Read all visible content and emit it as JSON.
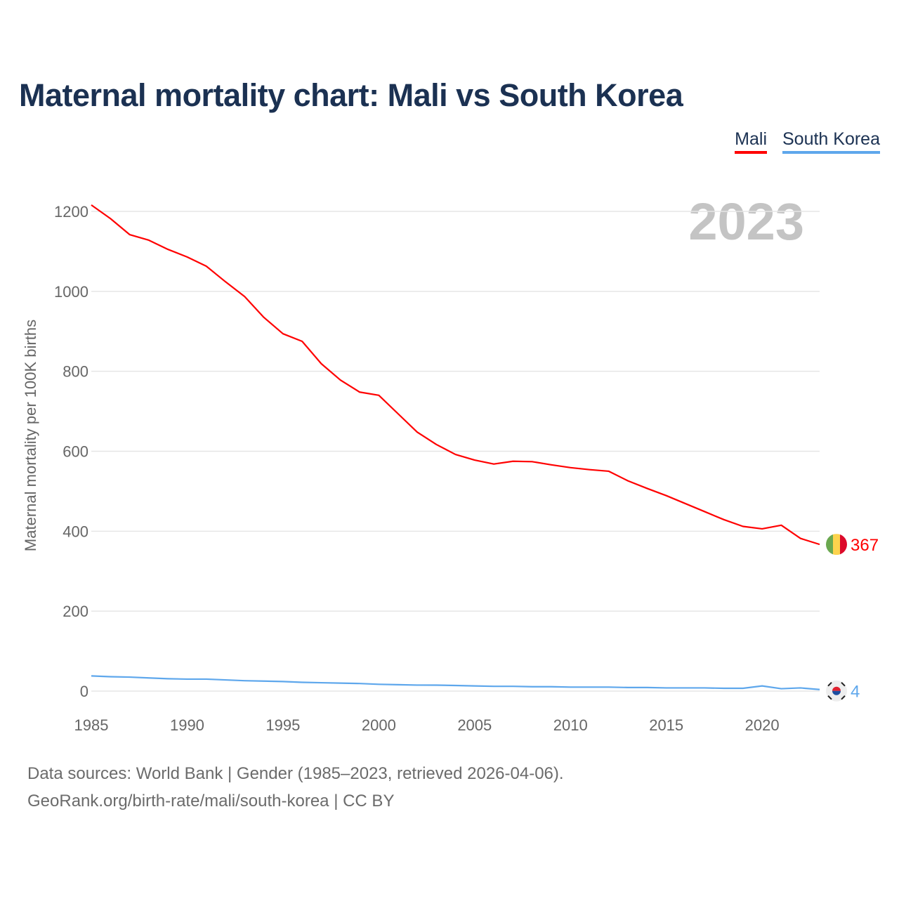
{
  "chart_data": {
    "type": "line",
    "title": "Maternal mortality chart: Mali vs South Korea",
    "ylabel": "Maternal mortality per 100K births",
    "xlabel": "",
    "year_label": "2023",
    "ylim": [
      0,
      1200
    ],
    "xlim": [
      1985,
      2023
    ],
    "yticks": [
      0,
      200,
      400,
      600,
      800,
      1000,
      1200
    ],
    "xticks": [
      1985,
      1990,
      1995,
      2000,
      2005,
      2010,
      2015,
      2020
    ],
    "grid": true,
    "legend_position": "top-right",
    "x": [
      1985,
      1986,
      1987,
      1988,
      1989,
      1990,
      1991,
      1992,
      1993,
      1994,
      1995,
      1996,
      1997,
      1998,
      1999,
      2000,
      2001,
      2002,
      2003,
      2004,
      2005,
      2006,
      2007,
      2008,
      2009,
      2010,
      2011,
      2012,
      2013,
      2014,
      2015,
      2016,
      2017,
      2018,
      2019,
      2020,
      2021,
      2022,
      2023
    ],
    "series": [
      {
        "name": "Mali",
        "color": "#ff0000",
        "end_label": "367",
        "values": [
          1216,
          1182,
          1142,
          1128,
          1105,
          1086,
          1063,
          1024,
          987,
          935,
          894,
          875,
          819,
          778,
          748,
          740,
          694,
          648,
          617,
          592,
          578,
          568,
          575,
          574,
          566,
          559,
          554,
          550,
          526,
          507,
          489,
          469,
          449,
          429,
          412,
          406,
          415,
          382,
          367
        ]
      },
      {
        "name": "South Korea",
        "color": "#5ea7ec",
        "end_label": "4",
        "values": [
          38,
          36,
          35,
          33,
          31,
          30,
          30,
          28,
          26,
          25,
          24,
          22,
          21,
          20,
          19,
          17,
          16,
          15,
          15,
          14,
          13,
          12,
          12,
          11,
          11,
          10,
          10,
          10,
          9,
          9,
          8,
          8,
          8,
          7,
          7,
          13,
          6,
          8,
          4
        ]
      }
    ]
  },
  "footer": {
    "line1": "Data sources: World Bank | Gender (1985–2023, retrieved 2026-04-06).",
    "line2": "GeoRank.org/birth-rate/mali/south-korea | CC BY"
  }
}
